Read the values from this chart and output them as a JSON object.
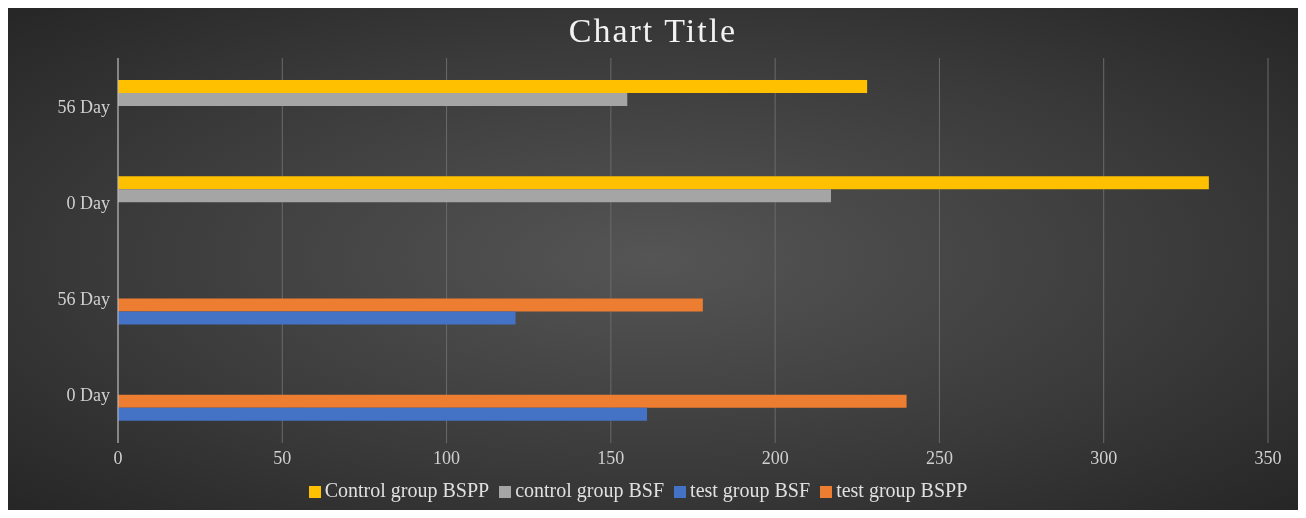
{
  "chart_data": {
    "type": "bar",
    "title": "Chart Title",
    "orientation": "horizontal",
    "categories": [
      "56 Day",
      "0 Day",
      "56 Day",
      "0 Day"
    ],
    "series": [
      {
        "name": "Control group BSPP",
        "color": "#ffc000",
        "values": [
          228,
          332,
          null,
          null
        ]
      },
      {
        "name": "control group BSF",
        "color": "#a5a5a5",
        "values": [
          155,
          217,
          null,
          null
        ]
      },
      {
        "name": "test group BSPP",
        "color": "#ed7d31",
        "values": [
          null,
          null,
          178,
          240
        ]
      },
      {
        "name": "test group BSF",
        "color": "#4472c4",
        "values": [
          null,
          null,
          121,
          161
        ]
      }
    ],
    "xlim": [
      0,
      350
    ],
    "xticks": [
      0,
      50,
      100,
      150,
      200,
      250,
      300,
      350
    ],
    "grid": "x",
    "legend": "bottom"
  }
}
